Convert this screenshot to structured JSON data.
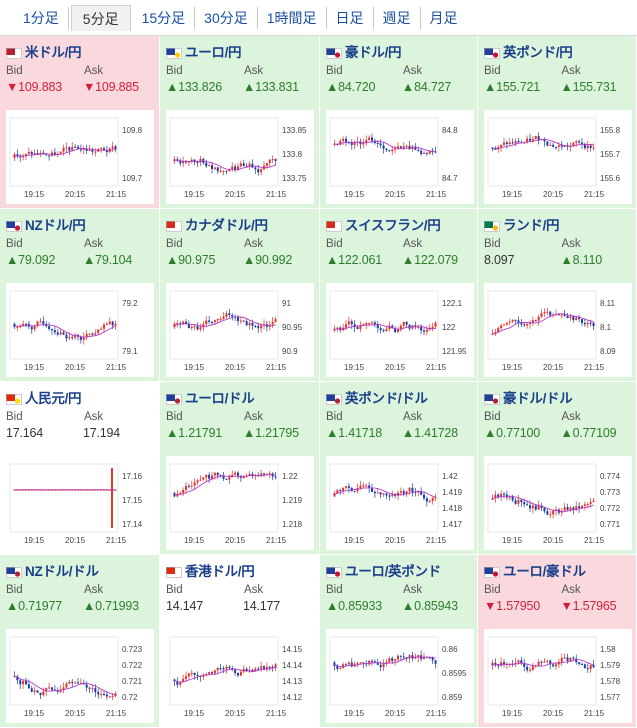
{
  "tabs": [
    {
      "label": "1分足",
      "active": false
    },
    {
      "label": "5分足",
      "active": true
    },
    {
      "label": "15分足",
      "active": false
    },
    {
      "label": "30分足",
      "active": false
    },
    {
      "label": "1時間足",
      "active": false
    },
    {
      "label": "日足",
      "active": false
    },
    {
      "label": "週足",
      "active": false
    },
    {
      "label": "月足",
      "active": false
    }
  ],
  "labels": {
    "bid": "Bid",
    "ask": "Ask"
  },
  "colors": {
    "up_bg": "#dcf3dc",
    "down_bg": "#fad9de",
    "up_text": "#2e7d2e",
    "down_text": "#d21f3c",
    "candle_up": "#e8332a",
    "candle_down": "#1a3fa6",
    "ma_line": "#b43cc4"
  },
  "x_ticks": [
    "19:15",
    "20:15",
    "21:15"
  ],
  "pairs": [
    {
      "name": "米ドル/円",
      "flag": "us-jp-flag-icon",
      "trend": "down",
      "bid": "▼109.883",
      "ask": "▼109.885",
      "y_ticks": [
        "109.8",
        "109.7"
      ]
    },
    {
      "name": "ユーロ/円",
      "flag": "eu-jp-flag-icon",
      "trend": "up",
      "bid": "▲133.826",
      "ask": "▲133.831",
      "y_ticks": [
        "133.85",
        "133.8",
        "133.75"
      ]
    },
    {
      "name": "豪ドル/円",
      "flag": "au-jp-flag-icon",
      "trend": "up",
      "bid": "▲84.720",
      "ask": "▲84.727",
      "y_ticks": [
        "84.8",
        "84.7"
      ]
    },
    {
      "name": "英ポンド/円",
      "flag": "gb-jp-flag-icon",
      "trend": "up",
      "bid": "▲155.721",
      "ask": "▲155.731",
      "y_ticks": [
        "155.8",
        "155.7",
        "155.6"
      ]
    },
    {
      "name": "NZドル/円",
      "flag": "nz-jp-flag-icon",
      "trend": "up",
      "bid": "▲79.092",
      "ask": "▲79.104",
      "y_ticks": [
        "79.2",
        "79.1"
      ]
    },
    {
      "name": "カナダドル/円",
      "flag": "ca-jp-flag-icon",
      "trend": "up",
      "bid": "▲90.975",
      "ask": "▲90.992",
      "y_ticks": [
        "91",
        "90.95",
        "90.9"
      ]
    },
    {
      "name": "スイスフラン/円",
      "flag": "ch-jp-flag-icon",
      "trend": "up",
      "bid": "▲122.061",
      "ask": "▲122.079",
      "y_ticks": [
        "122.1",
        "122",
        "121.95"
      ]
    },
    {
      "name": "ランド/円",
      "flag": "za-jp-flag-icon",
      "trend": "mixed",
      "bid": "8.097",
      "ask": "▲8.110",
      "y_ticks": [
        "8.11",
        "8.1",
        "8.09"
      ]
    },
    {
      "name": "人民元/円",
      "flag": "cn-jp-flag-icon",
      "trend": "flat",
      "bid": "17.164",
      "ask": "17.194",
      "y_ticks": [
        "17.16",
        "17.15",
        "17.14"
      ]
    },
    {
      "name": "ユーロ/ドル",
      "flag": "eu-us-flag-icon",
      "trend": "up",
      "bid": "▲1.21791",
      "ask": "▲1.21795",
      "y_ticks": [
        "1.22",
        "1.219",
        "1.218"
      ]
    },
    {
      "name": "英ポンド/ドル",
      "flag": "gb-us-flag-icon",
      "trend": "up",
      "bid": "▲1.41718",
      "ask": "▲1.41728",
      "y_ticks": [
        "1.42",
        "1.419",
        "1.418",
        "1.417"
      ]
    },
    {
      "name": "豪ドル/ドル",
      "flag": "au-us-flag-icon",
      "trend": "up",
      "bid": "▲0.77100",
      "ask": "▲0.77109",
      "y_ticks": [
        "0.774",
        "0.773",
        "0.772",
        "0.771"
      ]
    },
    {
      "name": "NZドル/ドル",
      "flag": "nz-us-flag-icon",
      "trend": "up",
      "bid": "▲0.71977",
      "ask": "▲0.71993",
      "y_ticks": [
        "0.723",
        "0.722",
        "0.721",
        "0.72"
      ]
    },
    {
      "name": "香港ドル/円",
      "flag": "hk-jp-flag-icon",
      "trend": "flat",
      "bid": "14.147",
      "ask": "14.177",
      "y_ticks": [
        "14.15",
        "14.14",
        "14.13",
        "14.12"
      ]
    },
    {
      "name": "ユーロ/英ポンド",
      "flag": "eu-gb-flag-icon",
      "trend": "up",
      "bid": "▲0.85933",
      "ask": "▲0.85943",
      "y_ticks": [
        "0.86",
        "0.8595",
        "0.859"
      ]
    },
    {
      "name": "ユーロ/豪ドル",
      "flag": "eu-au-flag-icon",
      "trend": "down",
      "bid": "▼1.57950",
      "ask": "▼1.57965",
      "y_ticks": [
        "1.58",
        "1.579",
        "1.578",
        "1.577"
      ]
    }
  ]
}
